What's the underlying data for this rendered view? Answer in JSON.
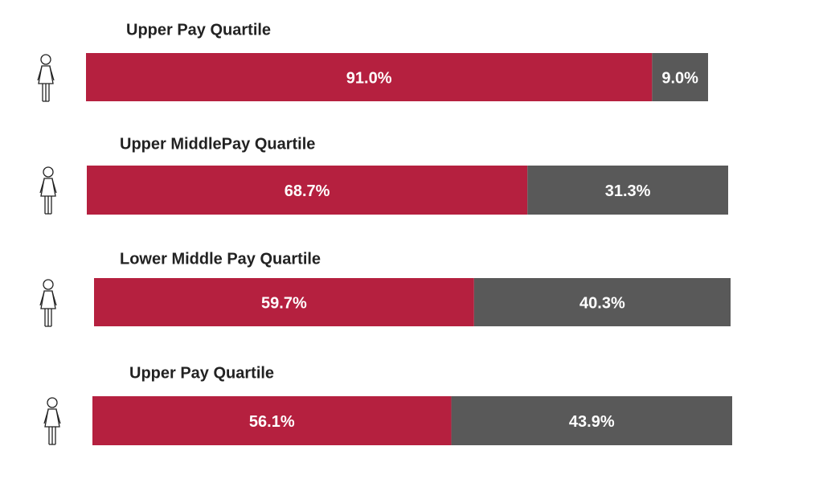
{
  "chart_data": [
    {
      "type": "stacked-bar",
      "title": "Upper Pay Quartile",
      "values": [
        91.0,
        9.0
      ],
      "value_labels": [
        "91.0%",
        "9.0%"
      ],
      "colors": [
        "#b5203f",
        "#595959"
      ],
      "xlim": [
        0,
        100
      ]
    },
    {
      "type": "stacked-bar",
      "title": "Upper MiddlePay Quartile",
      "values": [
        68.7,
        31.3
      ],
      "value_labels": [
        "68.7%",
        "31.3%"
      ],
      "colors": [
        "#b5203f",
        "#595959"
      ],
      "xlim": [
        0,
        100
      ]
    },
    {
      "type": "stacked-bar",
      "title": "Lower Middle  Pay Quartile",
      "values": [
        59.7,
        40.3
      ],
      "value_labels": [
        "59.7%",
        "40.3%"
      ],
      "colors": [
        "#b5203f",
        "#595959"
      ],
      "xlim": [
        0,
        100
      ]
    },
    {
      "type": "stacked-bar",
      "title": "Upper Pay Quartile",
      "values": [
        56.1,
        43.9
      ],
      "value_labels": [
        "56.1%",
        "43.9%"
      ],
      "colors": [
        "#b5203f",
        "#595959"
      ],
      "xlim": [
        0,
        100
      ]
    }
  ]
}
